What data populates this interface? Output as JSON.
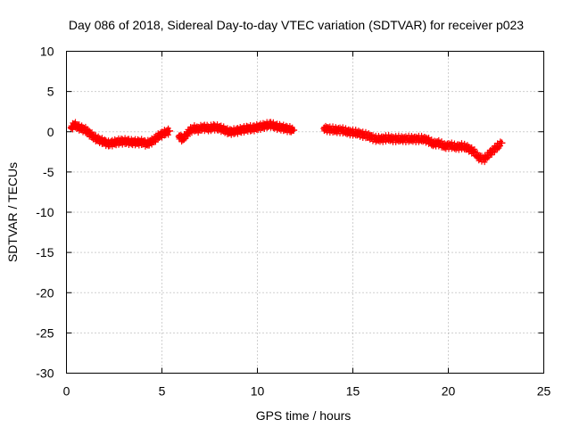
{
  "chart_data": {
    "type": "scatter",
    "title": "Day 086 of 2018, Sidereal Day-to-day VTEC variation (SDTVAR) for receiver p023",
    "xlabel": "GPS time / hours",
    "ylabel": "SDTVAR / TECUs",
    "xlim": [
      0,
      25
    ],
    "ylim": [
      -30,
      10
    ],
    "xticks": [
      0,
      5,
      10,
      15,
      20,
      25
    ],
    "yticks": [
      10,
      5,
      0,
      -5,
      -10,
      -15,
      -20,
      -25,
      -30
    ],
    "grid": true,
    "marker": "plus",
    "series": [
      {
        "name": "SDTVAR",
        "color": "#ff0000",
        "segments": [
          {
            "x": [
              0.25,
              0.4,
              0.6,
              0.8,
              1.0,
              1.2,
              1.4,
              1.6,
              1.8,
              2.0,
              2.2,
              2.4,
              2.6,
              2.8,
              3.0,
              3.2,
              3.4,
              3.6,
              3.8,
              4.0,
              4.2,
              4.4,
              4.6,
              4.8,
              5.0,
              5.2,
              5.4
            ],
            "y": [
              0.5,
              0.9,
              0.6,
              0.4,
              0.2,
              -0.2,
              -0.6,
              -0.9,
              -1.1,
              -1.3,
              -1.5,
              -1.4,
              -1.3,
              -1.2,
              -1.2,
              -1.2,
              -1.3,
              -1.3,
              -1.3,
              -1.3,
              -1.5,
              -1.3,
              -1.0,
              -0.6,
              -0.3,
              -0.1,
              0.1
            ]
          },
          {
            "x": [
              5.9,
              6.1,
              6.3,
              6.5,
              6.7,
              6.9,
              7.1,
              7.3,
              7.5,
              7.7,
              7.9,
              8.1,
              8.3,
              8.5,
              8.7,
              8.9,
              9.1,
              9.3,
              9.5,
              9.7,
              9.9,
              10.1,
              10.3,
              10.5,
              10.7,
              10.9,
              11.1,
              11.3,
              11.5,
              11.7,
              11.9
            ],
            "y": [
              -0.6,
              -0.9,
              -0.3,
              0.2,
              0.4,
              0.3,
              0.5,
              0.5,
              0.4,
              0.6,
              0.5,
              0.4,
              0.2,
              0.0,
              0.0,
              0.1,
              0.2,
              0.3,
              0.4,
              0.4,
              0.5,
              0.6,
              0.7,
              0.8,
              0.9,
              0.7,
              0.6,
              0.5,
              0.4,
              0.3,
              0.2
            ]
          },
          {
            "x": [
              13.5,
              13.8,
              14.1,
              14.4,
              14.7,
              15.0,
              15.3,
              15.6,
              15.9,
              16.2,
              16.5,
              16.8,
              17.1,
              17.4,
              17.7,
              18.0,
              18.3,
              18.6,
              18.9,
              19.2,
              19.5,
              19.8,
              20.1,
              20.4,
              20.7,
              21.0,
              21.3,
              21.6,
              21.9,
              22.2,
              22.5,
              22.8
            ],
            "y": [
              0.4,
              0.3,
              0.2,
              0.2,
              0.0,
              -0.1,
              -0.2,
              -0.4,
              -0.6,
              -0.9,
              -0.9,
              -0.8,
              -0.9,
              -0.9,
              -0.9,
              -0.9,
              -0.9,
              -0.9,
              -1.0,
              -1.5,
              -1.4,
              -1.8,
              -1.7,
              -1.9,
              -1.8,
              -2.0,
              -2.4,
              -3.2,
              -3.4,
              -2.6,
              -2.0,
              -1.4
            ]
          }
        ]
      }
    ]
  }
}
